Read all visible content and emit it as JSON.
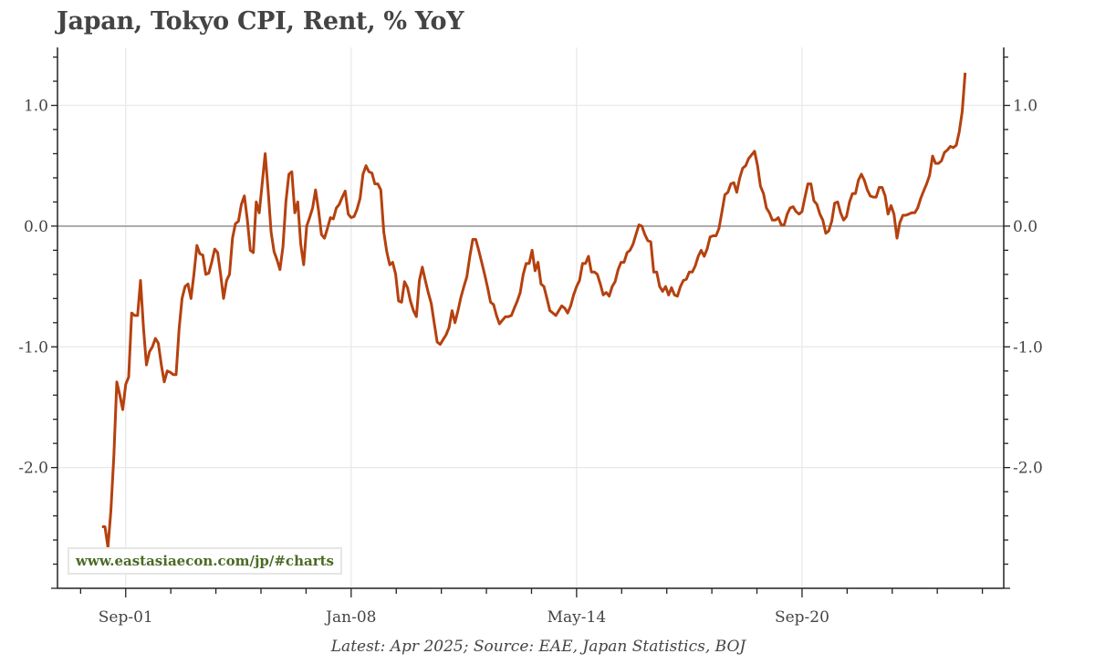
{
  "chart_data": {
    "type": "line",
    "title": "Japan, Tokyo CPI, Rent, % YoY",
    "footer": "Latest: Apr 2025; Source: EAE, Japan Statistics, BOJ",
    "watermark": "www.eastasiaecon.com/jp/#charts",
    "xlabel": "",
    "ylabel": "",
    "x_tick_labels": [
      {
        "date": "2001-09",
        "label": "Sep-01"
      },
      {
        "date": "2008-01",
        "label": "Jan-08"
      },
      {
        "date": "2014-05",
        "label": "May-14"
      },
      {
        "date": "2020-09",
        "label": "Sep-20"
      }
    ],
    "y_ticks": [
      1.0,
      0.0,
      -1.0,
      -2.0
    ],
    "y_tick_labels": [
      "1.0",
      "0.0",
      "-1.0",
      "-2.0"
    ],
    "ylim": [
      -3.0,
      1.48
    ],
    "xlim": [
      "1999-10",
      "2026-05"
    ],
    "grid": true,
    "y_axis_both_sides": true,
    "zero_line": true,
    "colors": {
      "line": "#b5410f",
      "grid": "#e8e8e8",
      "zero_line": "#999999",
      "title": "#444444",
      "watermark": "#4b6a25"
    },
    "series": [
      {
        "start": "2001-01",
        "frequency": "monthly",
        "values": [
          -2.49,
          -2.49,
          -2.66,
          -2.36,
          -1.9,
          -1.29,
          -1.4,
          -1.52,
          -1.31,
          -1.25,
          -0.72,
          -0.74,
          -0.74,
          -0.45,
          -0.85,
          -1.15,
          -1.04,
          -1.0,
          -0.93,
          -0.97,
          -1.15,
          -1.29,
          -1.2,
          -1.21,
          -1.23,
          -1.23,
          -0.85,
          -0.6,
          -0.5,
          -0.48,
          -0.6,
          -0.4,
          -0.16,
          -0.23,
          -0.24,
          -0.4,
          -0.39,
          -0.3,
          -0.19,
          -0.22,
          -0.4,
          -0.6,
          -0.45,
          -0.4,
          -0.1,
          0.02,
          0.04,
          0.18,
          0.25,
          0.05,
          -0.2,
          -0.22,
          0.2,
          0.11,
          0.35,
          0.6,
          0.3,
          -0.05,
          -0.21,
          -0.28,
          -0.36,
          -0.17,
          0.2,
          0.43,
          0.45,
          0.11,
          0.2,
          -0.15,
          -0.32,
          0.0,
          0.07,
          0.15,
          0.3,
          0.13,
          -0.07,
          -0.1,
          -0.02,
          0.07,
          0.06,
          0.15,
          0.18,
          0.24,
          0.29,
          0.1,
          0.07,
          0.08,
          0.14,
          0.23,
          0.43,
          0.5,
          0.45,
          0.44,
          0.35,
          0.35,
          0.3,
          -0.05,
          -0.21,
          -0.32,
          -0.3,
          -0.4,
          -0.62,
          -0.63,
          -0.46,
          -0.51,
          -0.62,
          -0.7,
          -0.75,
          -0.45,
          -0.34,
          -0.45,
          -0.55,
          -0.64,
          -0.8,
          -0.96,
          -0.98,
          -0.94,
          -0.9,
          -0.84,
          -0.7,
          -0.8,
          -0.7,
          -0.59,
          -0.5,
          -0.42,
          -0.25,
          -0.11,
          -0.11,
          -0.2,
          -0.3,
          -0.4,
          -0.51,
          -0.63,
          -0.65,
          -0.74,
          -0.81,
          -0.78,
          -0.75,
          -0.75,
          -0.74,
          -0.68,
          -0.62,
          -0.55,
          -0.4,
          -0.31,
          -0.31,
          -0.2,
          -0.37,
          -0.3,
          -0.48,
          -0.5,
          -0.6,
          -0.7,
          -0.72,
          -0.74,
          -0.7,
          -0.66,
          -0.68,
          -0.72,
          -0.66,
          -0.57,
          -0.5,
          -0.45,
          -0.31,
          -0.31,
          -0.25,
          -0.38,
          -0.38,
          -0.4,
          -0.48,
          -0.57,
          -0.55,
          -0.58,
          -0.5,
          -0.46,
          -0.36,
          -0.3,
          -0.3,
          -0.22,
          -0.2,
          -0.15,
          -0.07,
          0.01,
          0.0,
          -0.07,
          -0.12,
          -0.13,
          -0.38,
          -0.38,
          -0.5,
          -0.54,
          -0.5,
          -0.57,
          -0.51,
          -0.57,
          -0.58,
          -0.5,
          -0.45,
          -0.44,
          -0.38,
          -0.38,
          -0.33,
          -0.25,
          -0.2,
          -0.25,
          -0.19,
          -0.09,
          -0.08,
          -0.08,
          -0.02,
          0.12,
          0.26,
          0.28,
          0.35,
          0.36,
          0.28,
          0.4,
          0.48,
          0.5,
          0.56,
          0.59,
          0.62,
          0.5,
          0.33,
          0.27,
          0.15,
          0.11,
          0.05,
          0.05,
          0.07,
          0.01,
          0.01,
          0.1,
          0.15,
          0.16,
          0.12,
          0.1,
          0.12,
          0.24,
          0.35,
          0.35,
          0.21,
          0.18,
          0.1,
          0.05,
          -0.06,
          -0.04,
          0.04,
          0.19,
          0.2,
          0.11,
          0.05,
          0.08,
          0.2,
          0.27,
          0.27,
          0.38,
          0.43,
          0.38,
          0.3,
          0.25,
          0.24,
          0.24,
          0.32,
          0.32,
          0.25,
          0.1,
          0.17,
          0.1,
          -0.1,
          0.03,
          0.09,
          0.09,
          0.1,
          0.11,
          0.11,
          0.15,
          0.23,
          0.29,
          0.35,
          0.42,
          0.58,
          0.52,
          0.52,
          0.54,
          0.61,
          0.63,
          0.66,
          0.65,
          0.67,
          0.78,
          0.95,
          1.27
        ]
      }
    ]
  }
}
